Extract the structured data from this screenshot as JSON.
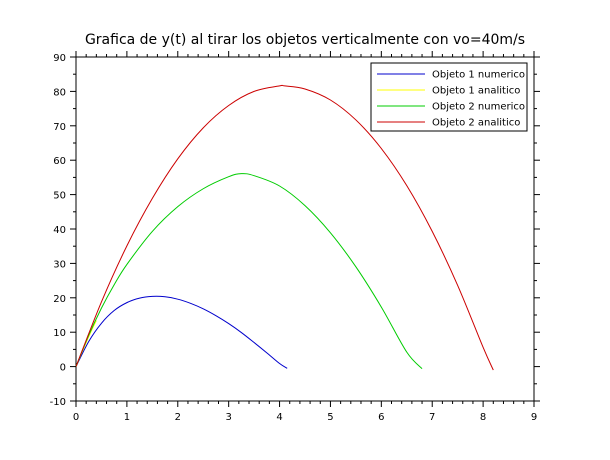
{
  "chart_data": {
    "type": "line",
    "title": "Grafica de y(t) al tirar los objetos verticalmente con vo=40m/s",
    "xlabel": "",
    "ylabel": "",
    "xlim": [
      0,
      9
    ],
    "ylim": [
      -10,
      90
    ],
    "xticks": [
      0,
      1,
      2,
      3,
      4,
      5,
      6,
      7,
      8,
      9
    ],
    "yticks": [
      -10,
      0,
      10,
      20,
      30,
      40,
      50,
      60,
      70,
      80,
      90
    ],
    "grid": false,
    "legend_position": "top-right",
    "series": [
      {
        "name": "Objeto 1 numerico",
        "color": "#0000cc",
        "x": [
          0,
          0.25,
          0.5,
          0.75,
          1.0,
          1.25,
          1.5,
          1.75,
          2.0,
          2.25,
          2.5,
          2.75,
          3.0,
          3.25,
          3.5,
          3.75,
          4.0,
          4.15
        ],
        "y": [
          0,
          7.3,
          12.6,
          16.3,
          18.6,
          19.9,
          20.4,
          20.3,
          19.6,
          18.4,
          16.8,
          14.8,
          12.5,
          9.9,
          7.0,
          4.0,
          0.9,
          -0.5
        ]
      },
      {
        "name": "Objeto 1 analitico",
        "color": "#ffff00",
        "x": [
          0,
          0.1,
          0.2,
          0.3,
          0.4
        ],
        "y": [
          0,
          3.6,
          7.0,
          10.3,
          13.4
        ]
      },
      {
        "name": "Objeto 2 numerico",
        "color": "#00cc00",
        "x": [
          0,
          0.25,
          0.5,
          0.75,
          1.0,
          1.5,
          2.0,
          2.5,
          3.0,
          3.25,
          3.5,
          4.0,
          4.5,
          5.0,
          5.5,
          6.0,
          6.5,
          6.8
        ],
        "y": [
          0,
          9.1,
          17.0,
          23.8,
          29.7,
          39.3,
          46.5,
          51.7,
          55.2,
          56.1,
          55.5,
          52.5,
          46.8,
          38.9,
          29.0,
          17.3,
          4.2,
          -0.6
        ]
      },
      {
        "name": "Objeto 2 analitico",
        "color": "#cc0000",
        "x": [
          0,
          0.5,
          1.0,
          1.5,
          2.0,
          2.5,
          3.0,
          3.5,
          4.0,
          4.1,
          4.5,
          5.0,
          5.5,
          6.0,
          6.5,
          7.0,
          7.5,
          8.0,
          8.2
        ],
        "y": [
          0,
          18.8,
          35.1,
          48.9,
          60.4,
          69.4,
          75.9,
          80.0,
          81.6,
          81.6,
          80.7,
          77.5,
          71.7,
          63.4,
          52.6,
          39.3,
          23.6,
          5.6,
          -1.0
        ]
      }
    ]
  }
}
